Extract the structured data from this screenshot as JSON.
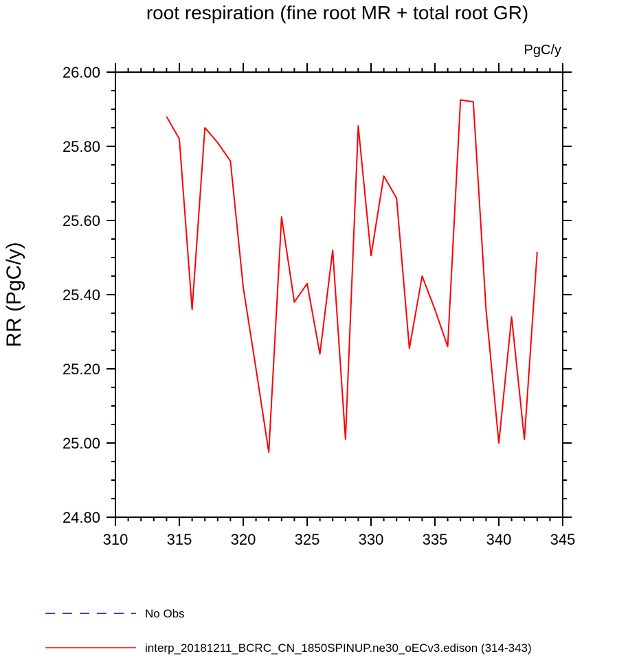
{
  "chart_data": {
    "type": "line",
    "title": "root respiration (fine root MR + total root GR)",
    "units": "PgC/y",
    "xlabel": "",
    "ylabel": "RR  (PgC/y)",
    "xlim": [
      310,
      345
    ],
    "ylim": [
      24.8,
      26.0
    ],
    "x_ticks": [
      310,
      315,
      320,
      325,
      330,
      335,
      340,
      345
    ],
    "y_ticks": [
      24.8,
      25.0,
      25.2,
      25.4,
      25.6,
      25.8,
      26.0
    ],
    "x_tick_labels": [
      "310",
      "315",
      "320",
      "325",
      "330",
      "335",
      "340",
      "345"
    ],
    "y_tick_labels": [
      "24.80",
      "25.00",
      "25.20",
      "25.40",
      "25.60",
      "25.80",
      "26.00"
    ],
    "series": [
      {
        "name": "interp_20181211_BCRC_CN_1850SPINUP.ne30_oECv3.edison (314-343)",
        "color": "#ff0000",
        "style": "solid",
        "x": [
          314,
          315,
          316,
          317,
          318,
          319,
          320,
          321,
          322,
          323,
          324,
          325,
          326,
          327,
          328,
          329,
          330,
          331,
          332,
          333,
          334,
          335,
          336,
          337,
          338,
          339,
          340,
          341,
          342,
          343
        ],
        "values": [
          25.88,
          25.82,
          25.36,
          25.85,
          25.81,
          25.76,
          25.42,
          25.2,
          24.975,
          25.61,
          25.38,
          25.43,
          25.24,
          25.52,
          25.01,
          25.855,
          25.505,
          25.72,
          25.66,
          25.255,
          25.45,
          25.36,
          25.26,
          25.925,
          25.92,
          25.36,
          25.0,
          25.34,
          25.01,
          25.515
        ]
      }
    ],
    "legend": [
      {
        "label": "No Obs",
        "color": "#0000cc",
        "style": "dashed"
      },
      {
        "label": "interp_20181211_BCRC_CN_1850SPINUP.ne30_oECv3.edison (314-343)",
        "color": "#ff0000",
        "style": "solid"
      }
    ],
    "grid": false
  }
}
